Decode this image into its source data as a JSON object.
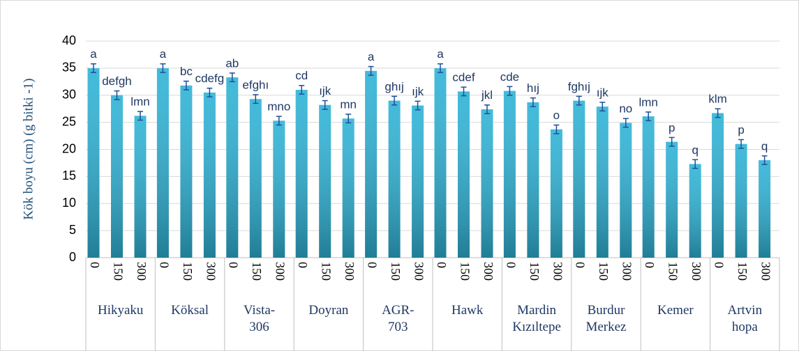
{
  "chart_data": {
    "type": "bar",
    "y_label": "Kök boyu (cm)  (g bitki -1)",
    "categories": [
      "0",
      "150",
      "300",
      "0",
      "150",
      "300",
      "0",
      "150",
      "300",
      "0",
      "150",
      "300",
      "0",
      "150",
      "300",
      "0",
      "150",
      "300",
      "0",
      "150",
      "300",
      "0",
      "150",
      "300",
      "0",
      "150",
      "300",
      "0",
      "150",
      "300"
    ],
    "groups": [
      "Hikyaku",
      "Köksal",
      "Vista-\n306",
      "Doyran",
      "AGR-\n703",
      "Hawk",
      "Mardin\nKızıltepe",
      "Burdur\nMerkez",
      "Kemer",
      "Artvin\nhopa"
    ],
    "values": [
      35,
      30,
      26.2,
      35,
      31.8,
      30.5,
      33.3,
      29.3,
      25.3,
      31,
      28.2,
      25.7,
      34.5,
      29,
      28.1,
      35,
      30.7,
      27.4,
      30.8,
      28.7,
      23.7,
      29,
      27.9,
      24.9,
      26.1,
      21.4,
      17.3,
      26.7,
      21,
      18
    ],
    "errors": [
      0.8,
      0.8,
      0.8,
      0.8,
      0.8,
      0.8,
      0.8,
      0.8,
      0.8,
      0.8,
      0.8,
      0.8,
      0.8,
      0.8,
      0.8,
      0.8,
      0.8,
      0.8,
      0.8,
      0.8,
      0.8,
      0.8,
      0.8,
      0.8,
      0.8,
      0.8,
      0.8,
      0.8,
      0.8,
      0.8
    ],
    "value_labels": [
      "a",
      "defgh",
      "lmn",
      "a",
      "bc",
      "cdefg",
      "ab",
      "efghı",
      "mno",
      "cd",
      "ıjk",
      "mn",
      "a",
      "ghıj",
      "ıjk",
      "a",
      "cdef",
      "jkl",
      "cde",
      "hıj",
      "o",
      "fghıj",
      "ıjk",
      "no",
      "lmn",
      "p",
      "q",
      "klm",
      "p",
      "q"
    ],
    "color": "#2fb3d6",
    "ylim": [
      0,
      40
    ],
    "yticks": [
      0,
      5,
      10,
      15,
      20,
      25,
      30,
      35,
      40
    ],
    "grid": true
  }
}
